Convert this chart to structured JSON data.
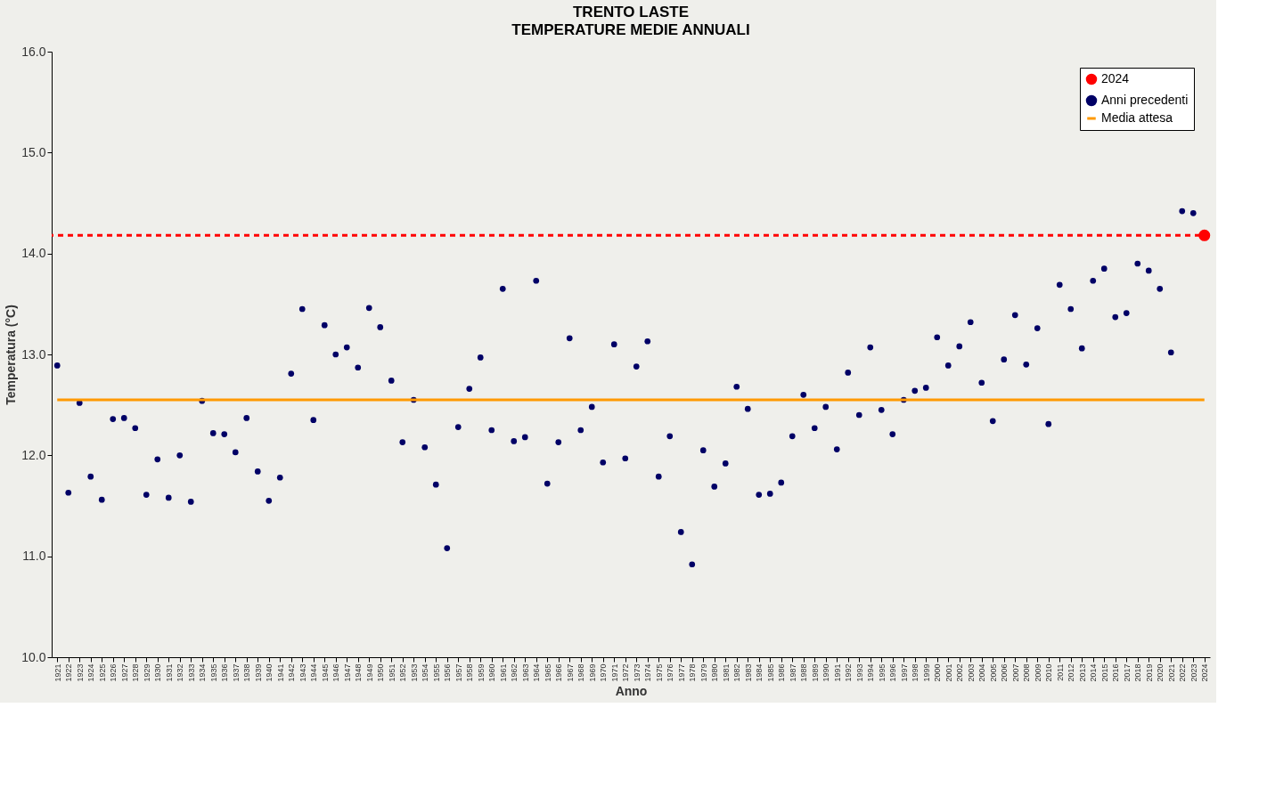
{
  "chart_data": {
    "type": "scatter",
    "title": "TRENTO LASTE",
    "subtitle": "TEMPERATURE MEDIE ANNUALI",
    "xlabel": "Anno",
    "ylabel": "Temperatura (°C)",
    "categories": [
      "1921",
      "1922",
      "1923",
      "1924",
      "1925",
      "1926",
      "1927",
      "1928",
      "1929",
      "1930",
      "1931",
      "1932",
      "1933",
      "1934",
      "1935",
      "1936",
      "1937",
      "1938",
      "1939",
      "1940",
      "1941",
      "1942",
      "1943",
      "1944",
      "1945",
      "1946",
      "1947",
      "1948",
      "1949",
      "1950",
      "1951",
      "1952",
      "1953",
      "1954",
      "1955",
      "1956",
      "1957",
      "1958",
      "1959",
      "1960",
      "1961",
      "1962",
      "1963",
      "1964",
      "1965",
      "1966",
      "1967",
      "1968",
      "1969",
      "1970",
      "1971",
      "1972",
      "1973",
      "1974",
      "1975",
      "1976",
      "1977",
      "1978",
      "1979",
      "1980",
      "1981",
      "1982",
      "1983",
      "1984",
      "1985",
      "1986",
      "1987",
      "1988",
      "1989",
      "1990",
      "1991",
      "1992",
      "1993",
      "1994",
      "1995",
      "1996",
      "1997",
      "1998",
      "1999",
      "2000",
      "2001",
      "2002",
      "2003",
      "2004",
      "2005",
      "2006",
      "2007",
      "2008",
      "2009",
      "2010",
      "2011",
      "2012",
      "2013",
      "2014",
      "2015",
      "2016",
      "2017",
      "2018",
      "2019",
      "2020",
      "2021",
      "2022",
      "2023",
      "2024"
    ],
    "series": [
      {
        "name": "2024",
        "color": "#ff0000",
        "marker": "circle",
        "values": [
          null,
          null,
          null,
          null,
          null,
          null,
          null,
          null,
          null,
          null,
          null,
          null,
          null,
          null,
          null,
          null,
          null,
          null,
          null,
          null,
          null,
          null,
          null,
          null,
          null,
          null,
          null,
          null,
          null,
          null,
          null,
          null,
          null,
          null,
          null,
          null,
          null,
          null,
          null,
          null,
          null,
          null,
          null,
          null,
          null,
          null,
          null,
          null,
          null,
          null,
          null,
          null,
          null,
          null,
          null,
          null,
          null,
          null,
          null,
          null,
          null,
          null,
          null,
          null,
          null,
          null,
          null,
          null,
          null,
          null,
          null,
          null,
          null,
          null,
          null,
          null,
          null,
          null,
          null,
          null,
          null,
          null,
          null,
          null,
          null,
          null,
          null,
          null,
          null,
          null,
          null,
          null,
          null,
          null,
          null,
          null,
          null,
          null,
          null,
          null,
          null,
          null,
          null,
          14.18
        ]
      },
      {
        "name": "Anni precedenti",
        "color": "#000066",
        "marker": "circle",
        "values": [
          12.89,
          11.63,
          12.52,
          11.79,
          11.56,
          12.36,
          12.37,
          12.27,
          11.61,
          11.96,
          11.58,
          12.0,
          11.54,
          12.54,
          12.22,
          12.21,
          12.03,
          12.37,
          11.84,
          11.55,
          11.78,
          12.81,
          13.45,
          12.35,
          13.29,
          13.0,
          13.07,
          12.87,
          13.46,
          13.27,
          12.74,
          12.13,
          12.55,
          12.08,
          11.71,
          11.08,
          12.28,
          12.66,
          12.97,
          12.25,
          13.65,
          12.14,
          12.18,
          13.73,
          11.72,
          12.13,
          13.16,
          12.25,
          12.48,
          11.93,
          13.1,
          11.97,
          12.88,
          13.13,
          11.79,
          12.19,
          11.24,
          10.92,
          12.05,
          11.69,
          11.92,
          12.68,
          12.46,
          11.61,
          11.62,
          11.73,
          12.19,
          12.6,
          12.27,
          12.48,
          12.06,
          12.82,
          12.4,
          13.07,
          12.45,
          12.21,
          12.55,
          12.64,
          12.67,
          13.17,
          12.89,
          13.08,
          13.32,
          12.72,
          12.34,
          12.95,
          13.39,
          12.9,
          13.26,
          12.31,
          13.69,
          13.45,
          13.06,
          13.73,
          13.85,
          13.37,
          13.41,
          13.9,
          13.83,
          13.65,
          13.02,
          14.42,
          14.4,
          null
        ]
      },
      {
        "name": "Media attesa",
        "type": "line",
        "color": "#ff9900",
        "marker": "none",
        "line_style": "solid",
        "values": [
          12.55,
          12.55,
          12.55,
          12.55,
          12.55,
          12.55,
          12.55,
          12.55,
          12.55,
          12.55,
          12.55,
          12.55,
          12.55,
          12.55,
          12.55,
          12.55,
          12.55,
          12.55,
          12.55,
          12.55,
          12.55,
          12.55,
          12.55,
          12.55,
          12.55,
          12.55,
          12.55,
          12.55,
          12.55,
          12.55,
          12.55,
          12.55,
          12.55,
          12.55,
          12.55,
          12.55,
          12.55,
          12.55,
          12.55,
          12.55,
          12.55,
          12.55,
          12.55,
          12.55,
          12.55,
          12.55,
          12.55,
          12.55,
          12.55,
          12.55,
          12.55,
          12.55,
          12.55,
          12.55,
          12.55,
          12.55,
          12.55,
          12.55,
          12.55,
          12.55,
          12.55,
          12.55,
          12.55,
          12.55,
          12.55,
          12.55,
          12.55,
          12.55,
          12.55,
          12.55,
          12.55,
          12.55,
          12.55,
          12.55,
          12.55,
          12.55,
          12.55,
          12.55,
          12.55,
          12.55,
          12.55,
          12.55,
          12.55,
          12.55,
          12.55,
          12.55,
          12.55,
          12.55,
          12.55,
          12.55,
          12.55,
          12.55,
          12.55,
          12.55,
          12.55,
          12.55,
          12.55,
          12.55,
          12.55,
          12.55,
          12.55,
          12.55,
          12.55,
          12.55
        ]
      }
    ],
    "ref_lines": [
      {
        "axis": "y",
        "value": 14.18,
        "color": "#ff0000",
        "line_style": "dashed"
      }
    ],
    "ylim": [
      10,
      16
    ],
    "yticks": [
      {
        "value": 10,
        "label": "10.0"
      },
      {
        "value": 11,
        "label": "11.0"
      },
      {
        "value": 12,
        "label": "12.0"
      },
      {
        "value": 13,
        "label": "13.0"
      },
      {
        "value": 14,
        "label": "14.0"
      },
      {
        "value": 15,
        "label": "15.0"
      },
      {
        "value": 16,
        "label": "16.0"
      }
    ],
    "grid": false,
    "legend": "top right"
  }
}
